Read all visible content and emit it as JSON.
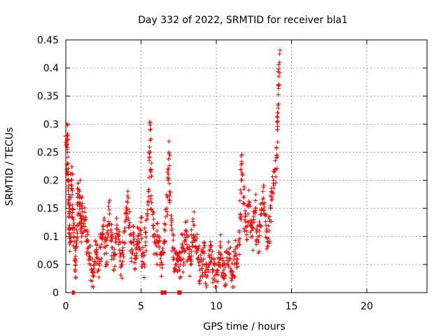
{
  "chart_data": {
    "type": "scatter",
    "title": "Day 332 of 2022, SRMTID for receiver bla1",
    "xlabel": "GPS time / hours",
    "ylabel": "SRMTID / TECUs",
    "xlim": [
      0,
      24
    ],
    "ylim": [
      0,
      0.45
    ],
    "xticks": [
      0,
      5,
      10,
      15,
      20
    ],
    "yticks": [
      0,
      0.05,
      0.1,
      0.15,
      0.2,
      0.25,
      0.3,
      0.35,
      0.4,
      0.45
    ],
    "grid": true,
    "marker": "+",
    "color": "#ff0000",
    "series": [
      {
        "name": "bla1",
        "points": [
          [
            0.05,
            0.27
          ],
          [
            0.08,
            0.28
          ],
          [
            0.1,
            0.25
          ],
          [
            0.12,
            0.23
          ],
          [
            0.15,
            0.21
          ],
          [
            0.18,
            0.2
          ],
          [
            0.2,
            0.16
          ],
          [
            0.22,
            0.14
          ],
          [
            0.25,
            0.12
          ],
          [
            0.28,
            0.1
          ],
          [
            0.3,
            0.09
          ],
          [
            0.35,
            0.2
          ],
          [
            0.4,
            0.19
          ],
          [
            0.45,
            0.15
          ],
          [
            0.5,
            0.13
          ],
          [
            0.55,
            0.1
          ],
          [
            0.6,
            0.06
          ],
          [
            0.65,
            0.05
          ],
          [
            0.7,
            0.09
          ],
          [
            0.75,
            0.12
          ],
          [
            0.8,
            0.17
          ],
          [
            0.85,
            0.16
          ],
          [
            0.9,
            0.18
          ],
          [
            0.95,
            0.14
          ],
          [
            1.0,
            0.12
          ],
          [
            1.05,
            0.1
          ],
          [
            1.1,
            0.15
          ],
          [
            1.2,
            0.13
          ],
          [
            1.3,
            0.11
          ],
          [
            1.4,
            0.09
          ],
          [
            1.5,
            0.08
          ],
          [
            1.6,
            0.06
          ],
          [
            1.7,
            0.04
          ],
          [
            1.8,
            0.03
          ],
          [
            1.9,
            0.05
          ],
          [
            2.0,
            0.07
          ],
          [
            2.1,
            0.06
          ],
          [
            2.2,
            0.04
          ],
          [
            2.3,
            0.08
          ],
          [
            2.4,
            0.1
          ],
          [
            2.5,
            0.12
          ],
          [
            2.6,
            0.09
          ],
          [
            2.7,
            0.07
          ],
          [
            2.8,
            0.11
          ],
          [
            2.9,
            0.14
          ],
          [
            3.0,
            0.1
          ],
          [
            3.1,
            0.08
          ],
          [
            3.2,
            0.06
          ],
          [
            3.3,
            0.09
          ],
          [
            3.4,
            0.12
          ],
          [
            3.5,
            0.1
          ],
          [
            3.6,
            0.07
          ],
          [
            3.7,
            0.05
          ],
          [
            3.8,
            0.08
          ],
          [
            3.9,
            0.11
          ],
          [
            4.0,
            0.13
          ],
          [
            4.1,
            0.16
          ],
          [
            4.2,
            0.12
          ],
          [
            4.3,
            0.09
          ],
          [
            4.4,
            0.07
          ],
          [
            4.5,
            0.1
          ],
          [
            4.6,
            0.06
          ],
          [
            4.7,
            0.08
          ],
          [
            4.8,
            0.1
          ],
          [
            4.9,
            0.09
          ],
          [
            5.0,
            0.11
          ],
          [
            5.1,
            0.07
          ],
          [
            5.2,
            0.05
          ],
          [
            5.3,
            0.09
          ],
          [
            5.4,
            0.14
          ],
          [
            5.5,
            0.18
          ],
          [
            5.55,
            0.24
          ],
          [
            5.6,
            0.29
          ],
          [
            5.65,
            0.22
          ],
          [
            5.7,
            0.16
          ],
          [
            5.8,
            0.12
          ],
          [
            5.9,
            0.09
          ],
          [
            6.0,
            0.07
          ],
          [
            6.1,
            0.1
          ],
          [
            6.2,
            0.08
          ],
          [
            6.3,
            0.06
          ],
          [
            6.4,
            0.05
          ],
          [
            6.5,
            0.07
          ],
          [
            6.6,
            0.11
          ],
          [
            6.7,
            0.15
          ],
          [
            6.8,
            0.2
          ],
          [
            6.85,
            0.25
          ],
          [
            6.9,
            0.18
          ],
          [
            7.0,
            0.12
          ],
          [
            7.1,
            0.08
          ],
          [
            7.2,
            0.06
          ],
          [
            7.3,
            0.05
          ],
          [
            7.4,
            0.06
          ],
          [
            7.5,
            0.07
          ],
          [
            7.6,
            0.05
          ],
          [
            7.7,
            0.08
          ],
          [
            7.8,
            0.06
          ],
          [
            7.9,
            0.09
          ],
          [
            8.0,
            0.11
          ],
          [
            8.1,
            0.08
          ],
          [
            8.2,
            0.06
          ],
          [
            8.3,
            0.05
          ],
          [
            8.4,
            0.09
          ],
          [
            8.5,
            0.12
          ],
          [
            8.6,
            0.1
          ],
          [
            8.7,
            0.08
          ],
          [
            8.8,
            0.06
          ],
          [
            8.9,
            0.04
          ],
          [
            9.0,
            0.06
          ],
          [
            9.1,
            0.05
          ],
          [
            9.2,
            0.07
          ],
          [
            9.3,
            0.04
          ],
          [
            9.4,
            0.03
          ],
          [
            9.5,
            0.05
          ],
          [
            9.6,
            0.08
          ],
          [
            9.7,
            0.06
          ],
          [
            9.8,
            0.04
          ],
          [
            9.9,
            0.03
          ],
          [
            10.0,
            0.02
          ],
          [
            10.1,
            0.04
          ],
          [
            10.2,
            0.06
          ],
          [
            10.3,
            0.08
          ],
          [
            10.4,
            0.05
          ],
          [
            10.5,
            0.04
          ],
          [
            10.6,
            0.03
          ],
          [
            10.7,
            0.05
          ],
          [
            10.8,
            0.07
          ],
          [
            10.9,
            0.06
          ],
          [
            11.0,
            0.04
          ],
          [
            11.1,
            0.03
          ],
          [
            11.2,
            0.05
          ],
          [
            11.3,
            0.07
          ],
          [
            11.4,
            0.06
          ],
          [
            11.5,
            0.09
          ],
          [
            11.6,
            0.14
          ],
          [
            11.65,
            0.2
          ],
          [
            11.7,
            0.23
          ],
          [
            11.8,
            0.17
          ],
          [
            11.9,
            0.13
          ],
          [
            12.0,
            0.11
          ],
          [
            12.1,
            0.14
          ],
          [
            12.2,
            0.16
          ],
          [
            12.3,
            0.12
          ],
          [
            12.4,
            0.1
          ],
          [
            12.5,
            0.13
          ],
          [
            12.6,
            0.15
          ],
          [
            12.7,
            0.11
          ],
          [
            12.8,
            0.09
          ],
          [
            12.9,
            0.12
          ],
          [
            13.0,
            0.14
          ],
          [
            13.1,
            0.18
          ],
          [
            13.2,
            0.16
          ],
          [
            13.3,
            0.12
          ],
          [
            13.4,
            0.09
          ],
          [
            13.5,
            0.11
          ],
          [
            13.6,
            0.15
          ],
          [
            13.7,
            0.17
          ],
          [
            13.8,
            0.2
          ],
          [
            13.9,
            0.22
          ],
          [
            14.0,
            0.24
          ],
          [
            14.05,
            0.29
          ],
          [
            14.1,
            0.32
          ],
          [
            14.15,
            0.37
          ],
          [
            14.2,
            0.41
          ]
        ]
      }
    ],
    "zero_points_x": [
      0.5,
      6.4,
      6.6,
      7.5,
      7.6
    ]
  }
}
